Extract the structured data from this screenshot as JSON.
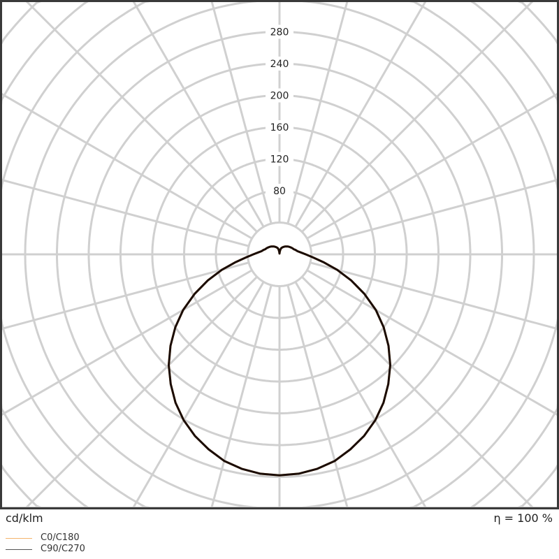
{
  "chart_data": {
    "type": "polar",
    "unit_label": "cd/klm",
    "efficiency_label": "η = 100 %",
    "radial_ticks": [
      80,
      120,
      160,
      200,
      240,
      280
    ],
    "radial_grid_step": 40,
    "angular_grid_step_deg": 15,
    "grid": true,
    "legend_placement": "bottom-left",
    "gamma_deg": [
      0,
      5,
      10,
      15,
      20,
      25,
      30,
      35,
      40,
      45,
      50,
      55,
      60,
      65,
      70,
      75,
      80,
      85,
      90,
      95,
      100,
      105,
      110,
      115,
      120,
      125,
      130,
      135,
      140,
      145,
      150,
      155,
      160,
      165,
      170,
      175,
      180
    ],
    "series": [
      {
        "name": "C0/C180",
        "color": "#f5b36b",
        "values": [
          278,
          277,
          274,
          269,
          261,
          252,
          241,
          228,
          213,
          197,
          179,
          160,
          140,
          118,
          96,
          75,
          56,
          42,
          33,
          27,
          23,
          21,
          19,
          18,
          17,
          16,
          15,
          14,
          13,
          12,
          11,
          10,
          9,
          8,
          6,
          3,
          1
        ]
      },
      {
        "name": "C90/C270",
        "color": "#1a0c05",
        "values": [
          278,
          277,
          274,
          269,
          261,
          252,
          241,
          228,
          213,
          197,
          179,
          160,
          140,
          118,
          96,
          75,
          56,
          42,
          33,
          27,
          23,
          21,
          19,
          18,
          17,
          16,
          15,
          14,
          13,
          12,
          11,
          10,
          9,
          8,
          6,
          3,
          1
        ]
      }
    ]
  }
}
